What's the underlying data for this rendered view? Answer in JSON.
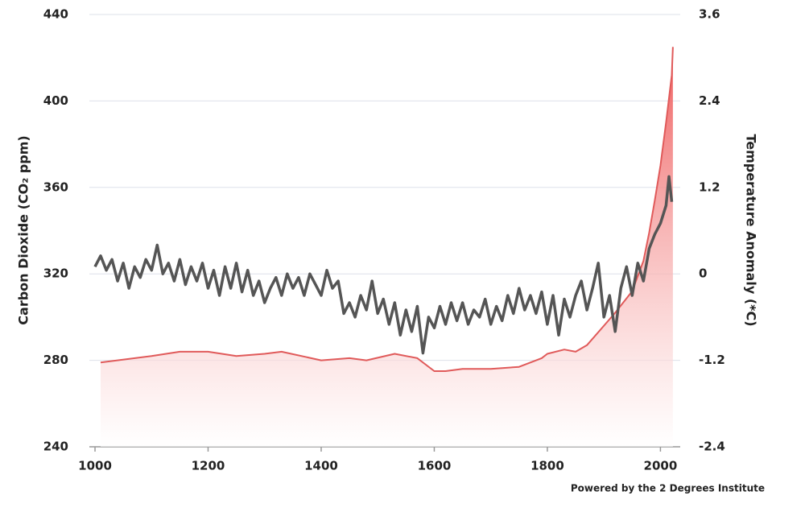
{
  "chart_data": {
    "type": "line",
    "ylabel": "Carbon Dioxide (CO₂ ppm)",
    "y2label": "Temperature Anomaly (*C)",
    "footer": "Powered by the 2 Degrees Institute",
    "xlim": [
      990,
      2035
    ],
    "xticks": [
      1000,
      1200,
      1400,
      1600,
      1800,
      2000
    ],
    "ylim": [
      240,
      440
    ],
    "yticks": [
      240,
      280,
      320,
      360,
      400,
      440
    ],
    "y2lim": [
      -2.4,
      3.6
    ],
    "y2ticks": [
      -2.4,
      -1.2,
      0,
      1.2,
      2.4,
      3.6
    ],
    "grid": true,
    "series": [
      {
        "color": "#e05a5a",
        "area": true,
        "x": [
          1010,
          1100,
          1150,
          1200,
          1250,
          1300,
          1330,
          1400,
          1450,
          1480,
          1530,
          1570,
          1600,
          1620,
          1650,
          1700,
          1750,
          1790,
          1800,
          1830,
          1850,
          1870,
          1900,
          1920,
          1950,
          1970,
          1980,
          1990,
          2000,
          2010,
          2020,
          2022
        ],
        "values": [
          279,
          282,
          284,
          284,
          282,
          283,
          284,
          280,
          281,
          280,
          283,
          281,
          275,
          275,
          276,
          276,
          277,
          281,
          283,
          285,
          284,
          287,
          296,
          302,
          312,
          326,
          339,
          354,
          370,
          390,
          412,
          425
        ]
      },
      {
        "color": "#555555",
        "axis": "y2",
        "x": [
          1000,
          1010,
          1020,
          1030,
          1040,
          1050,
          1060,
          1070,
          1080,
          1090,
          1100,
          1110,
          1120,
          1130,
          1140,
          1150,
          1160,
          1170,
          1180,
          1190,
          1200,
          1210,
          1220,
          1230,
          1240,
          1250,
          1260,
          1270,
          1280,
          1290,
          1300,
          1310,
          1320,
          1330,
          1340,
          1350,
          1360,
          1370,
          1380,
          1390,
          1400,
          1410,
          1420,
          1430,
          1440,
          1450,
          1460,
          1470,
          1480,
          1490,
          1500,
          1510,
          1520,
          1530,
          1540,
          1550,
          1560,
          1570,
          1580,
          1590,
          1600,
          1610,
          1620,
          1630,
          1640,
          1650,
          1660,
          1670,
          1680,
          1690,
          1700,
          1710,
          1720,
          1730,
          1740,
          1750,
          1760,
          1770,
          1780,
          1790,
          1800,
          1810,
          1820,
          1830,
          1840,
          1850,
          1860,
          1870,
          1880,
          1890,
          1900,
          1910,
          1920,
          1930,
          1940,
          1950,
          1960,
          1970,
          1980,
          1990,
          2000,
          2010,
          2015,
          2020
        ],
        "values": [
          0.1,
          0.25,
          0.05,
          0.2,
          -0.1,
          0.15,
          -0.2,
          0.1,
          -0.05,
          0.2,
          0.05,
          0.4,
          0.0,
          0.15,
          -0.1,
          0.2,
          -0.15,
          0.1,
          -0.1,
          0.15,
          -0.2,
          0.05,
          -0.3,
          0.1,
          -0.2,
          0.15,
          -0.25,
          0.05,
          -0.3,
          -0.1,
          -0.4,
          -0.2,
          -0.05,
          -0.3,
          0.0,
          -0.2,
          -0.05,
          -0.3,
          0.0,
          -0.15,
          -0.3,
          0.05,
          -0.2,
          -0.1,
          -0.55,
          -0.4,
          -0.6,
          -0.3,
          -0.5,
          -0.1,
          -0.55,
          -0.35,
          -0.7,
          -0.4,
          -0.85,
          -0.5,
          -0.8,
          -0.45,
          -1.1,
          -0.6,
          -0.75,
          -0.45,
          -0.7,
          -0.4,
          -0.65,
          -0.4,
          -0.7,
          -0.5,
          -0.6,
          -0.35,
          -0.7,
          -0.45,
          -0.65,
          -0.3,
          -0.55,
          -0.2,
          -0.5,
          -0.3,
          -0.55,
          -0.25,
          -0.7,
          -0.3,
          -0.85,
          -0.35,
          -0.6,
          -0.3,
          -0.1,
          -0.5,
          -0.2,
          0.15,
          -0.6,
          -0.3,
          -0.8,
          -0.2,
          0.1,
          -0.3,
          0.15,
          -0.1,
          0.35,
          0.55,
          0.7,
          0.95,
          1.35,
          1.0
        ]
      }
    ]
  }
}
